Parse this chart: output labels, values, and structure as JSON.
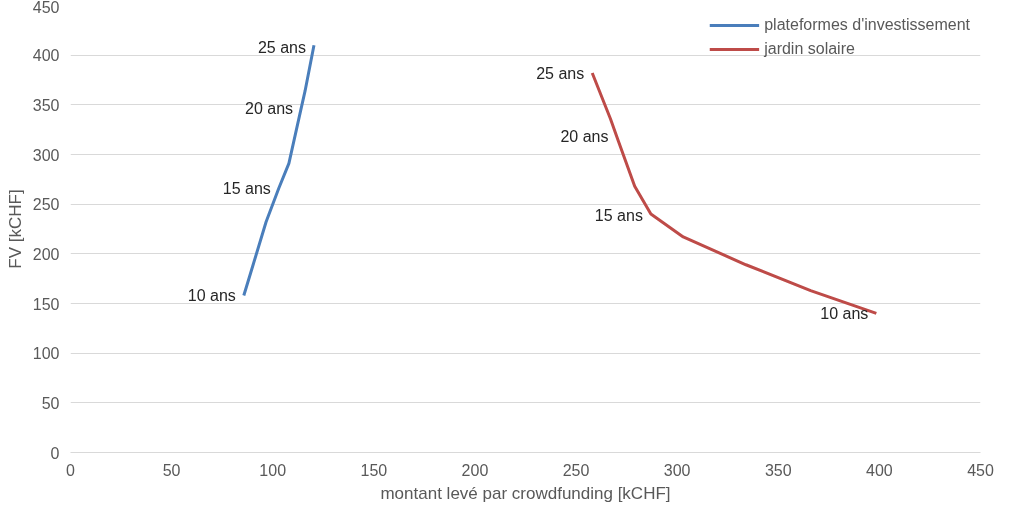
{
  "chart_data": {
    "type": "line",
    "xlabel": "montant levé par crowdfunding [kCHF]",
    "ylabel": "FV [kCHF]",
    "xlim": [
      0,
      450
    ],
    "xticks": [
      0,
      50,
      100,
      150,
      200,
      250,
      300,
      350,
      400,
      450
    ],
    "ylim": [
      0,
      450
    ],
    "yticks": [
      0,
      50,
      100,
      150,
      200,
      250,
      300,
      350,
      400,
      450
    ],
    "grid": "y",
    "legend": "top right",
    "marker": "none",
    "line_style": "solid",
    "series": [
      {
        "name": "plateformes d'investissement",
        "color": "#4a7ebb",
        "x": [
          85.7,
          96.7,
          103,
          108,
          114,
          116,
          120.4
        ],
        "values": [
          158,
          232,
          266,
          291,
          346,
          364,
          410
        ]
      },
      {
        "name": "jardin solaire",
        "color": "#be4b48",
        "x": [
          258,
          267,
          271,
          279,
          287,
          303,
          334,
          366,
          398.5
        ],
        "values": [
          382,
          336,
          313,
          268,
          240,
          217,
          189,
          163,
          140
        ]
      }
    ],
    "annotations": [
      {
        "text": "10 ans",
        "x": 85.7,
        "y": 158
      },
      {
        "text": "15 ans",
        "x": 103,
        "y": 266
      },
      {
        "text": "20 ans",
        "x": 114,
        "y": 346
      },
      {
        "text": "25 ans",
        "x": 120.4,
        "y": 408
      },
      {
        "text": "25 ans",
        "x": 258,
        "y": 382
      },
      {
        "text": "20 ans",
        "x": 270,
        "y": 318
      },
      {
        "text": "15 ans",
        "x": 287,
        "y": 239
      },
      {
        "text": "10 ans",
        "x": 398.5,
        "y": 140
      }
    ]
  }
}
